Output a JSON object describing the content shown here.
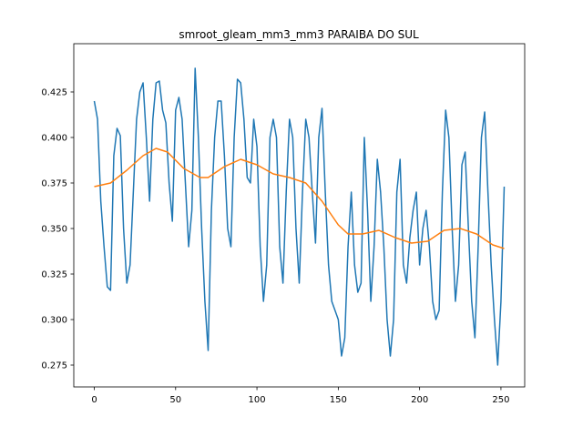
{
  "chart_data": {
    "type": "line",
    "title": "smroot_gleam_mm3_mm3 PARAIBA DO SUL",
    "xlim": [
      -12.6,
      264.6
    ],
    "xticks": [
      0,
      50,
      100,
      150,
      200,
      250
    ],
    "ylim": [
      0.263,
      0.4515
    ],
    "yticks": [
      0.275,
      {
        "value": 0.3,
        "label": "0.300"
      },
      0.325,
      {
        "value": 0.35,
        "label": "0.350"
      },
      0.375,
      {
        "value": 0.4,
        "label": "0.400"
      },
      0.425
    ],
    "series": [
      {
        "color": "#1f77b4",
        "x": [
          0,
          2,
          4,
          6,
          8,
          10,
          12,
          14,
          16,
          18,
          20,
          22,
          24,
          26,
          28,
          30,
          32,
          34,
          36,
          38,
          40,
          42,
          44,
          46,
          48,
          50,
          52,
          54,
          56,
          58,
          60,
          62,
          64,
          66,
          68,
          70,
          72,
          74,
          76,
          78,
          80,
          82,
          84,
          86,
          88,
          90,
          92,
          94,
          96,
          98,
          100,
          102,
          104,
          106,
          108,
          110,
          112,
          114,
          116,
          118,
          120,
          122,
          124,
          126,
          128,
          130,
          132,
          134,
          136,
          138,
          140,
          142,
          144,
          146,
          148,
          150,
          152,
          154,
          156,
          158,
          160,
          162,
          164,
          166,
          168,
          170,
          172,
          174,
          176,
          178,
          180,
          182,
          184,
          186,
          188,
          190,
          192,
          194,
          196,
          198,
          200,
          202,
          204,
          206,
          208,
          210,
          212,
          214,
          216,
          218,
          220,
          222,
          224,
          226,
          228,
          230,
          232,
          234,
          236,
          238,
          240,
          242,
          244,
          246,
          248,
          250,
          252
        ],
        "values": [
          0.42,
          0.41,
          0.365,
          0.34,
          0.318,
          0.316,
          0.39,
          0.405,
          0.401,
          0.35,
          0.32,
          0.33,
          0.37,
          0.41,
          0.425,
          0.43,
          0.4,
          0.365,
          0.41,
          0.43,
          0.431,
          0.415,
          0.408,
          0.375,
          0.354,
          0.415,
          0.422,
          0.41,
          0.375,
          0.34,
          0.36,
          0.438,
          0.4,
          0.35,
          0.31,
          0.283,
          0.36,
          0.4,
          0.42,
          0.42,
          0.39,
          0.35,
          0.34,
          0.4,
          0.432,
          0.43,
          0.41,
          0.378,
          0.375,
          0.41,
          0.395,
          0.34,
          0.31,
          0.33,
          0.4,
          0.41,
          0.4,
          0.34,
          0.32,
          0.37,
          0.41,
          0.4,
          0.35,
          0.32,
          0.37,
          0.41,
          0.4,
          0.37,
          0.342,
          0.4,
          0.416,
          0.37,
          0.33,
          0.31,
          0.305,
          0.3,
          0.28,
          0.29,
          0.34,
          0.37,
          0.33,
          0.315,
          0.32,
          0.4,
          0.36,
          0.31,
          0.34,
          0.388,
          0.37,
          0.34,
          0.3,
          0.28,
          0.3,
          0.37,
          0.388,
          0.33,
          0.32,
          0.345,
          0.36,
          0.37,
          0.33,
          0.35,
          0.36,
          0.34,
          0.31,
          0.3,
          0.305,
          0.37,
          0.415,
          0.4,
          0.35,
          0.31,
          0.33,
          0.385,
          0.392,
          0.35,
          0.31,
          0.29,
          0.34,
          0.4,
          0.414,
          0.37,
          0.33,
          0.3,
          0.275,
          0.31,
          0.373
        ]
      },
      {
        "color": "#ff7f0e",
        "x": [
          0,
          10,
          20,
          30,
          38,
          45,
          55,
          65,
          70,
          80,
          90,
          100,
          110,
          120,
          130,
          140,
          150,
          156,
          165,
          175,
          185,
          195,
          205,
          215,
          225,
          235,
          245,
          252
        ],
        "values": [
          0.373,
          0.375,
          0.382,
          0.39,
          0.394,
          0.392,
          0.383,
          0.378,
          0.378,
          0.384,
          0.388,
          0.385,
          0.38,
          0.378,
          0.375,
          0.365,
          0.352,
          0.347,
          0.347,
          0.349,
          0.345,
          0.342,
          0.343,
          0.349,
          0.35,
          0.347,
          0.341,
          0.339
        ]
      }
    ]
  }
}
